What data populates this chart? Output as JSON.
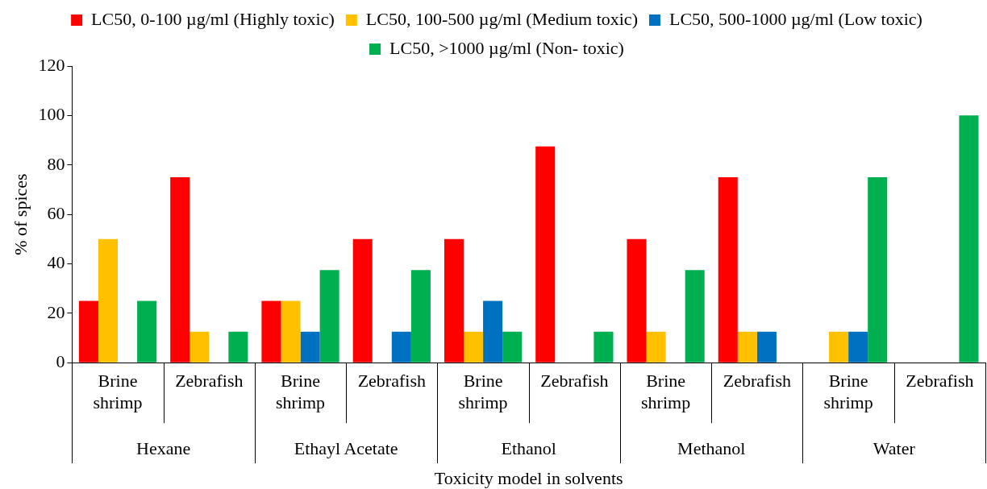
{
  "chart_data": {
    "type": "bar",
    "categories": [
      "Brine shrimp",
      "Zebrafish",
      "Brine shrimp",
      "Zebrafish",
      "Brine shrimp",
      "Zebrafish",
      "Brine shrimp",
      "Zebrafish",
      "Brine shrimp",
      "Zebrafish"
    ],
    "series": [
      {
        "name": "LC50, 0-100 µg/ml (Highly toxic)",
        "color": "#ff0000",
        "values": [
          25,
          75,
          25,
          50,
          50,
          87.5,
          50,
          75,
          0,
          0
        ]
      },
      {
        "name": "LC50, 100-500 µg/ml (Medium toxic)",
        "color": "#ffc000",
        "values": [
          50,
          12.5,
          25,
          0,
          12.5,
          0,
          12.5,
          12.5,
          12.5,
          0
        ]
      },
      {
        "name": "LC50, 500-1000 µg/ml (Low toxic)",
        "color": "#0070c0",
        "values": [
          0,
          0,
          12.5,
          12.5,
          25,
          0,
          0,
          12.5,
          12.5,
          0
        ]
      },
      {
        "name": "LC50, >1000 µg/ml (Non- toxic)",
        "color": "#00b050",
        "values": [
          25,
          12.5,
          37.5,
          37.5,
          12.5,
          12.5,
          37.5,
          0,
          75,
          100
        ]
      }
    ],
    "ylabel": "% of spices",
    "xlabel": "Toxicity model in solvents",
    "annotations": [
      "Hexane",
      "Ethayl Acetate",
      "Ethanol",
      "Methanol",
      "Water"
    ],
    "ylim": [
      0,
      120
    ],
    "yticks": [
      0,
      20,
      40,
      60,
      80,
      100,
      120
    ],
    "grid": false,
    "legend": "top"
  }
}
